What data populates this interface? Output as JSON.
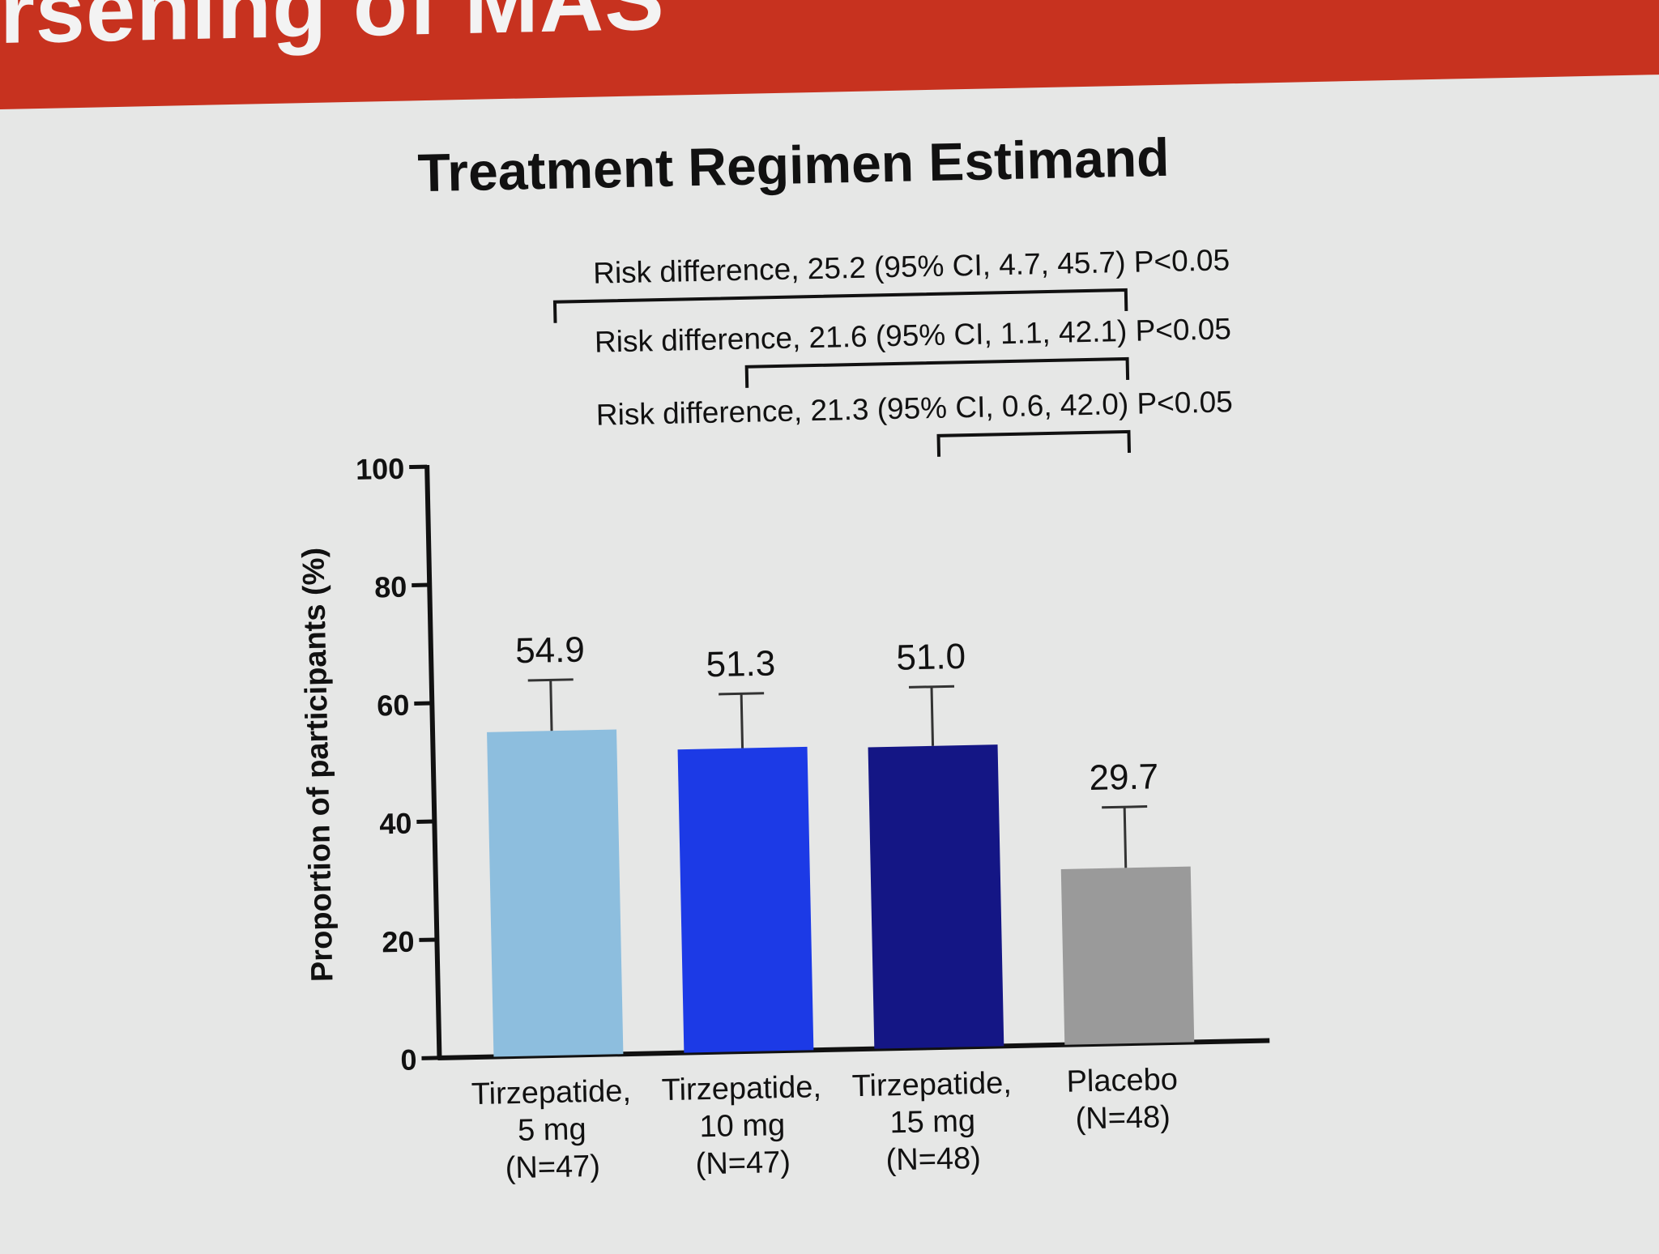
{
  "slide": {
    "header_title_fragment": "rsening of MAS"
  },
  "colors": {
    "header": "#c7321f",
    "background": "#e6e7e6"
  },
  "chart_data": {
    "type": "bar",
    "title": "Treatment Regimen Estimand",
    "ylabel": "Proportion of participants (%)",
    "ylim": [
      0,
      100
    ],
    "yticks": [
      0,
      20,
      40,
      60,
      80,
      100
    ],
    "categories": [
      [
        "Tirzepatide,",
        "5 mg",
        "(N=47)"
      ],
      [
        "Tirzepatide,",
        "10 mg",
        "(N=47)"
      ],
      [
        "Tirzepatide,",
        "15 mg",
        "(N=48)"
      ],
      [
        "Placebo",
        "(N=48)"
      ]
    ],
    "values": [
      54.9,
      51.3,
      51.0,
      29.7
    ],
    "value_labels": [
      "54.9",
      "51.3",
      "51.0",
      "29.7"
    ],
    "error_upper": [
      63.5,
      60.5,
      61.0,
      40.0
    ],
    "bar_colors": [
      "#8dbede",
      "#1c3ae6",
      "#141685",
      "#9a9a9a"
    ],
    "comparisons": [
      {
        "from": 0,
        "to": 3,
        "label": "Risk difference, 25.2 (95% CI, 4.7, 45.7) P<0.05"
      },
      {
        "from": 1,
        "to": 3,
        "label": "Risk difference, 21.6 (95% CI, 1.1, 42.1) P<0.05"
      },
      {
        "from": 2,
        "to": 3,
        "label": "Risk difference, 21.3 (95% CI, 0.6, 42.0) P<0.05"
      }
    ]
  }
}
